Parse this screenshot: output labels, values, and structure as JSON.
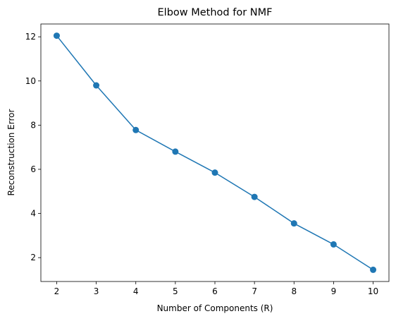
{
  "chart_data": {
    "type": "line",
    "title": "Elbow Method for NMF",
    "xlabel": "Number of Components (R)",
    "ylabel": "Reconstruction Error",
    "x": [
      2,
      3,
      4,
      5,
      6,
      7,
      8,
      9,
      10
    ],
    "series": [
      {
        "values": [
          12.05,
          9.8,
          7.78,
          6.8,
          5.85,
          4.75,
          3.55,
          2.6,
          1.45
        ],
        "color": "#1f77b4",
        "marker": "circle"
      }
    ],
    "xlim": [
      1.6,
      10.4
    ],
    "ylim": [
      0.92,
      12.58
    ],
    "xticks": [
      "2",
      "3",
      "4",
      "5",
      "6",
      "7",
      "8",
      "9",
      "10"
    ],
    "yticks": [
      "2",
      "4",
      "6",
      "8",
      "10",
      "12"
    ],
    "grid": false,
    "legend": "none"
  }
}
